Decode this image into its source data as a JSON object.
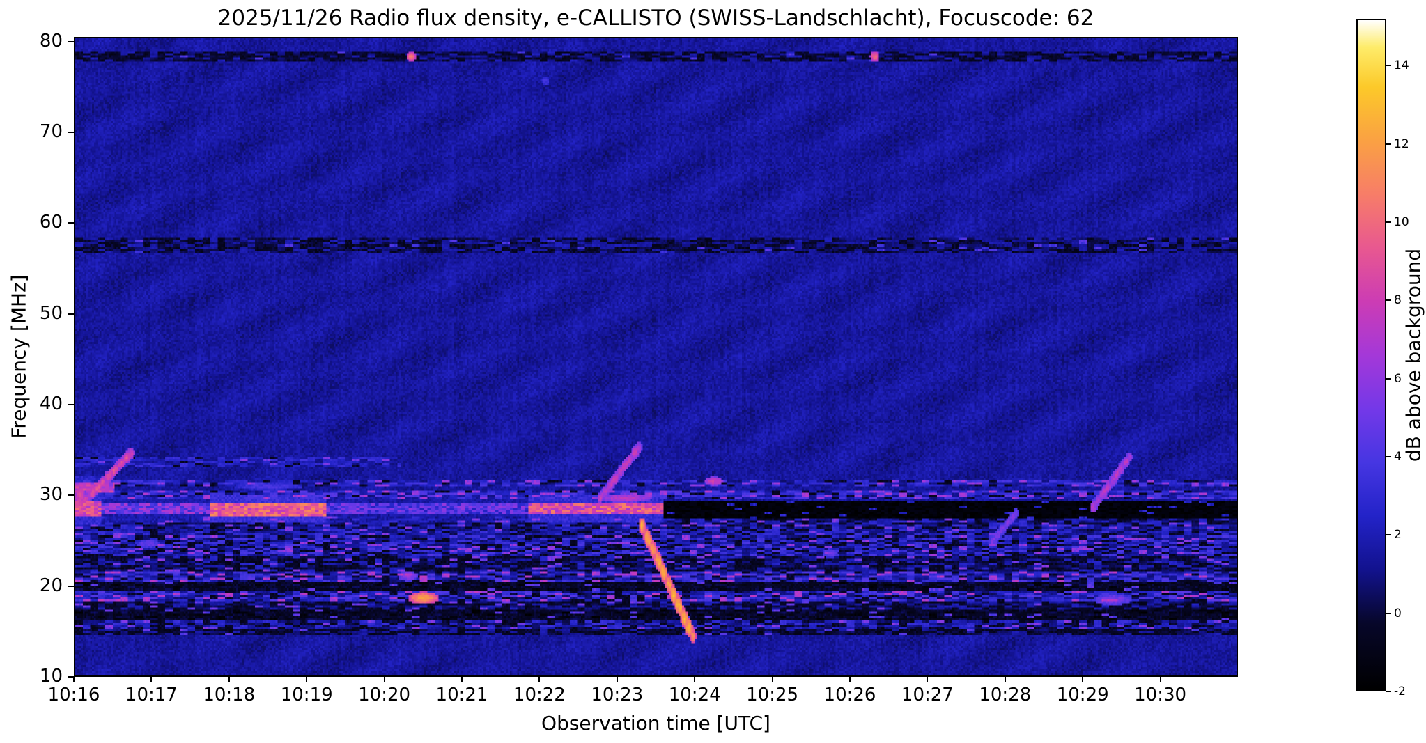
{
  "chart_data": {
    "type": "heatmap",
    "title": "2025/11/26  Radio flux density, e-CALLISTO (SWISS-Landschlacht), Focuscode: 62",
    "xlabel": "Observation time [UTC]",
    "ylabel": "Frequency [MHz]",
    "colorbar_label": "dB above background",
    "x_ticks": [
      "10:16",
      "10:17",
      "10:18",
      "10:19",
      "10:20",
      "10:21",
      "10:22",
      "10:23",
      "10:24",
      "10:25",
      "10:26",
      "10:27",
      "10:28",
      "10:29",
      "10:30"
    ],
    "x_minutes_span": 15,
    "y_ticks": [
      80,
      70,
      60,
      50,
      40,
      30,
      20,
      10
    ],
    "freq_min": 10,
    "freq_max": 80.5,
    "value_min": -2,
    "value_max": 15.2,
    "colorbar_ticks": [
      14,
      12,
      10,
      8,
      6,
      4,
      2,
      0,
      -2
    ],
    "grid": false,
    "colormap_stops": [
      {
        "p": 0.0,
        "c": "#000000"
      },
      {
        "p": 0.1,
        "c": "#07072a"
      },
      {
        "p": 0.18,
        "c": "#12128e"
      },
      {
        "p": 0.26,
        "c": "#2323c8"
      },
      {
        "p": 0.34,
        "c": "#4636e2"
      },
      {
        "p": 0.42,
        "c": "#7438e8"
      },
      {
        "p": 0.5,
        "c": "#a438d8"
      },
      {
        "p": 0.58,
        "c": "#cc3cb4"
      },
      {
        "p": 0.66,
        "c": "#e85890"
      },
      {
        "p": 0.74,
        "c": "#f77d68"
      },
      {
        "p": 0.82,
        "c": "#faa143"
      },
      {
        "p": 0.9,
        "c": "#fcc929"
      },
      {
        "p": 0.96,
        "c": "#feec6a"
      },
      {
        "p": 1.0,
        "c": "#ffffff"
      }
    ],
    "background": {
      "base": 1.45,
      "noise": 1.1,
      "ripple": 0.38,
      "stripe": 0.3
    },
    "texture_bands": [
      {
        "f": [
          77.8,
          79.0
        ],
        "mean": 0.9,
        "amp": 1.3,
        "dark": 0.45,
        "bright": 0.02,
        "bval": 3.0
      },
      {
        "f": [
          56.8,
          58.4
        ],
        "mean": 1.0,
        "amp": 1.1,
        "dark": 0.32,
        "bright": 0.02,
        "bval": 3.0
      },
      {
        "f": [
          33.0,
          34.2
        ],
        "mean": 2.1,
        "amp": 1.3,
        "dark": 0.06,
        "bright": 0.05,
        "bval": 4.2,
        "t": [
          0,
          4.2
        ]
      },
      {
        "f": [
          30.8,
          31.7
        ],
        "mean": 2.3,
        "amp": 1.7,
        "dark": 0.1,
        "bright": 0.1,
        "bval": 5.0
      },
      {
        "f": [
          29.6,
          30.5
        ],
        "mean": 2.6,
        "amp": 1.8,
        "dark": 0.1,
        "bright": 0.12,
        "bval": 5.5
      },
      {
        "f": [
          26.6,
          27.6
        ],
        "mean": 1.5,
        "amp": 1.7,
        "dark": 0.28,
        "bright": 0.06,
        "bval": 4.5
      },
      {
        "f": [
          25.4,
          26.6
        ],
        "mean": 1.8,
        "amp": 1.6,
        "dark": 0.18,
        "bright": 0.06,
        "bval": 4.5
      },
      {
        "f": [
          23.2,
          25.4
        ],
        "mean": 2.2,
        "amp": 1.8,
        "dark": 0.22,
        "bright": 0.08,
        "bval": 5.0
      },
      {
        "f": [
          21.4,
          23.2
        ],
        "mean": 1.1,
        "amp": 1.6,
        "dark": 0.38,
        "bright": 0.05,
        "bval": 4.5
      },
      {
        "f": [
          20.3,
          21.4
        ],
        "mean": 2.4,
        "amp": 2.0,
        "dark": 0.16,
        "bright": 0.1,
        "bval": 6.0
      },
      {
        "f": [
          19.3,
          20.3
        ],
        "mean": -0.6,
        "amp": 1.2,
        "dark": 0.55,
        "bright": 0.04,
        "bval": 3.5
      },
      {
        "f": [
          18.2,
          19.3
        ],
        "mean": 2.4,
        "amp": 2.0,
        "dark": 0.14,
        "bright": 0.1,
        "bval": 6.0
      },
      {
        "f": [
          17.2,
          18.2
        ],
        "mean": 0.8,
        "amp": 1.5,
        "dark": 0.32,
        "bright": 0.05,
        "bval": 4.0
      },
      {
        "f": [
          16.1,
          17.2
        ],
        "mean": -0.7,
        "amp": 1.2,
        "dark": 0.55,
        "bright": 0.04,
        "bval": 3.5
      },
      {
        "f": [
          15.2,
          16.1
        ],
        "mean": 1.8,
        "amp": 1.6,
        "dark": 0.22,
        "bright": 0.06,
        "bval": 4.5
      },
      {
        "f": [
          14.4,
          15.2
        ],
        "mean": 0.6,
        "amp": 1.4,
        "dark": 0.36,
        "bright": 0.04,
        "bval": 3.5
      }
    ],
    "line_segments": [
      {
        "t": [
          0.0,
          0.35
        ],
        "f": [
          27.6,
          29.3
        ],
        "v": 8.5,
        "jit": 2.0
      },
      {
        "t": [
          0.35,
          1.75
        ],
        "f": [
          27.8,
          29.0
        ],
        "v": 5.0,
        "jit": 2.2
      },
      {
        "t": [
          1.75,
          3.25
        ],
        "f": [
          27.7,
          29.1
        ],
        "v": 9.5,
        "jit": 2.0
      },
      {
        "t": [
          3.25,
          5.85
        ],
        "f": [
          27.8,
          29.0
        ],
        "v": 4.2,
        "jit": 2.0
      },
      {
        "t": [
          5.85,
          7.6
        ],
        "f": [
          27.8,
          29.1
        ],
        "v": 8.8,
        "jit": 2.2
      },
      {
        "t": [
          7.6,
          15.0
        ],
        "f": [
          27.3,
          29.2
        ],
        "v": -1.6,
        "jit": 0.5
      },
      {
        "t": [
          0.0,
          0.5
        ],
        "f": [
          30.3,
          31.3
        ],
        "v": 7.0,
        "jit": 2.0
      }
    ],
    "bursts": [
      {
        "t0": 0.05,
        "f0": 28.6,
        "t1": 0.72,
        "f1": 34.6,
        "v": 7.5,
        "w": 0.6,
        "dashes": 9
      },
      {
        "t0": 6.78,
        "f0": 29.6,
        "t1": 7.28,
        "f1": 35.2,
        "v": 6.5,
        "w": 0.6,
        "dashes": 8
      },
      {
        "t0": 7.32,
        "f0": 26.6,
        "t1": 7.98,
        "f1": 14.3,
        "v": 10.5,
        "w": 0.9,
        "dashes": 10
      },
      {
        "t0": 13.15,
        "f0": 28.6,
        "t1": 13.62,
        "f1": 34.2,
        "v": 6.0,
        "w": 0.6,
        "dashes": 8
      },
      {
        "t0": 11.85,
        "f0": 24.8,
        "t1": 12.15,
        "f1": 28.0,
        "v": 4.5,
        "w": 0.5,
        "dashes": 5
      }
    ],
    "spots": [
      {
        "t": 4.34,
        "f": 78.5,
        "dt": 0.06,
        "df": 0.6,
        "v": 10.5
      },
      {
        "t": 10.33,
        "f": 78.5,
        "dt": 0.06,
        "df": 0.6,
        "v": 10.0
      },
      {
        "t": 8.25,
        "f": 31.5,
        "dt": 0.12,
        "df": 0.5,
        "v": 8.0
      },
      {
        "t": 4.5,
        "f": 18.6,
        "dt": 0.2,
        "df": 0.7,
        "v": 12.0
      },
      {
        "t": 4.3,
        "f": 21.0,
        "dt": 0.12,
        "df": 0.6,
        "v": 6.0
      },
      {
        "t": 13.4,
        "f": 18.4,
        "dt": 0.25,
        "df": 0.6,
        "v": 5.5
      },
      {
        "t": 9.75,
        "f": 23.5,
        "dt": 0.1,
        "df": 0.5,
        "v": 5.0
      },
      {
        "t": 6.08,
        "f": 75.8,
        "dt": 0.05,
        "df": 0.5,
        "v": 3.8
      },
      {
        "t": 0.95,
        "f": 24.6,
        "dt": 0.15,
        "df": 0.5,
        "v": 4.8
      },
      {
        "t": 2.5,
        "f": 30.9,
        "dt": 0.45,
        "df": 0.4,
        "v": 4.0
      },
      {
        "t": 7.1,
        "f": 29.6,
        "dt": 0.35,
        "df": 0.5,
        "v": 7.5
      },
      {
        "t": 0.06,
        "f": 29.8,
        "dt": 0.08,
        "df": 1.6,
        "v": 8.5
      }
    ]
  }
}
